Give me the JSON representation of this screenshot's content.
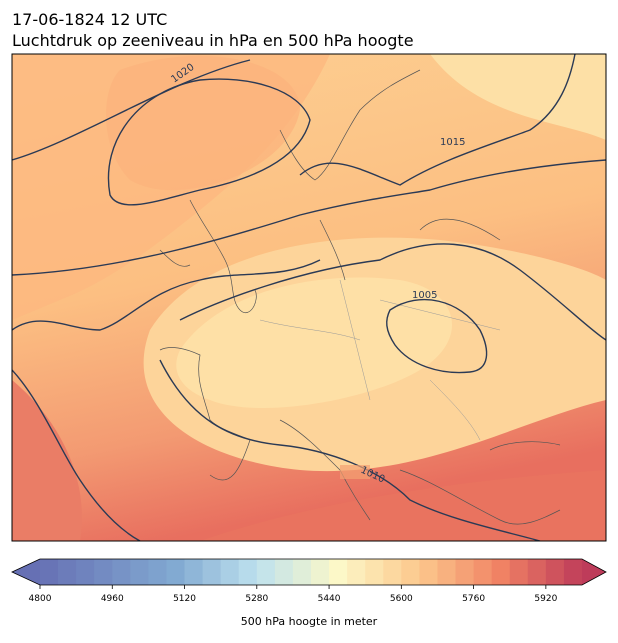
{
  "header": {
    "date": "17-06-1824 12 UTC",
    "title": "Luchtdruk op zeeniveau in hPa en 500 hPa hoogte"
  },
  "map": {
    "contour_labels": [
      "1020",
      "1015",
      "1005",
      "1010"
    ]
  },
  "chart_data": {
    "type": "colorbar",
    "label": "500 hPa hoogte in meter",
    "xlim": [
      4800,
      6000
    ],
    "xticks": [
      4800,
      4960,
      5120,
      5280,
      5440,
      5600,
      5760,
      5920
    ]
  }
}
